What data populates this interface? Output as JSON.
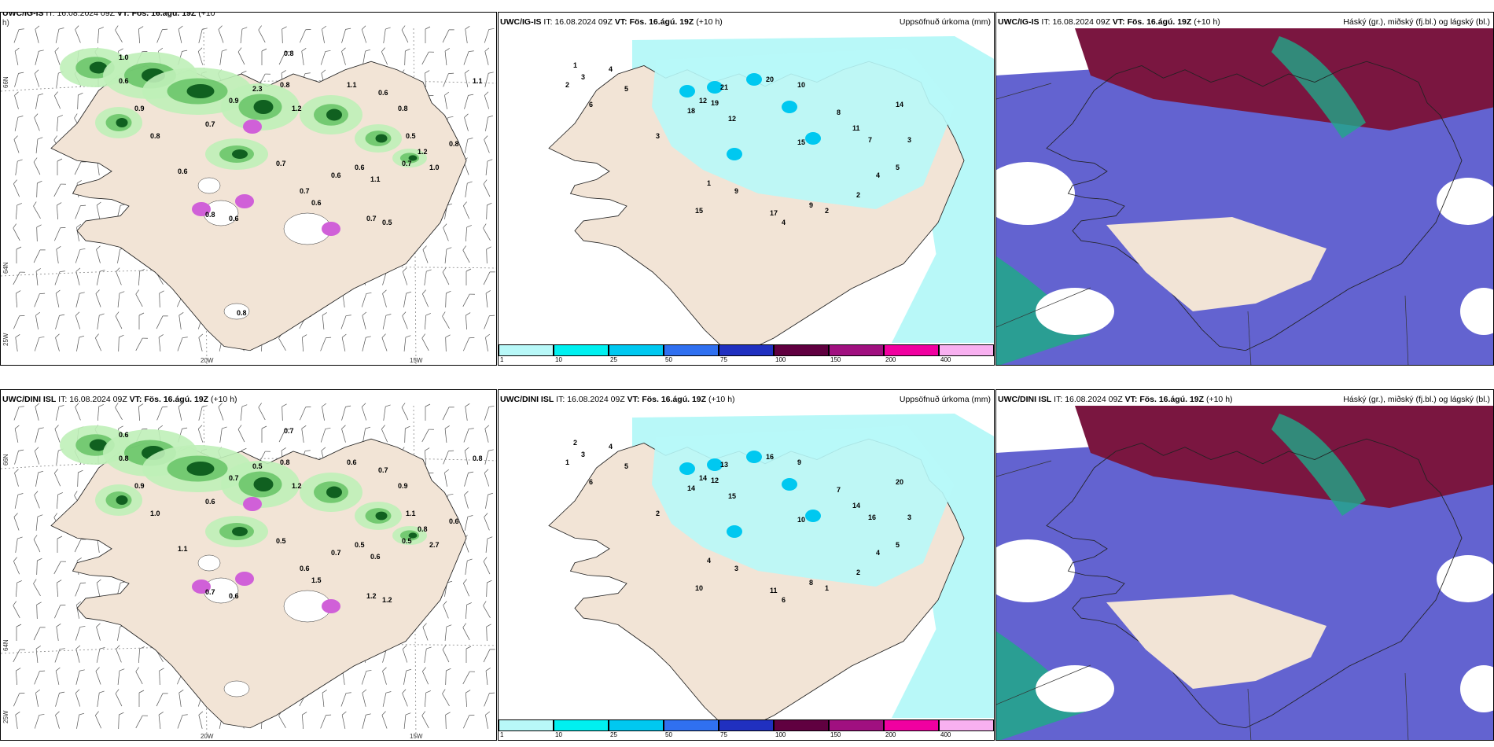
{
  "panels": [
    {
      "id": "top-wind",
      "model": "UWC/IG-IS",
      "it_label": "IT:",
      "it": "16.08.2024 09Z",
      "vt_label": "VT:",
      "vt": "Fös. 16.ágú. 19Z",
      "lead": "(+10",
      "lead_wrap": "h)",
      "lat_labels": [
        "66N",
        "64N",
        "25W"
      ],
      "lon_labels": [
        "20W",
        "15W"
      ],
      "numbers": [
        "1.0",
        "0.8",
        "0.6",
        "0.9",
        "0.8",
        "0.6",
        "0.7",
        "0.9",
        "2.3",
        "0.8",
        "1.2",
        "1.1",
        "0.6",
        "0.8",
        "0.5",
        "1.2",
        "1.0",
        "0.7",
        "1.1",
        "0.6",
        "0.7",
        "0.6",
        "0.7",
        "0.6",
        "0.8",
        "0.7",
        "0.5",
        "0.6",
        "1.1",
        "0.8",
        "0.8"
      ]
    },
    {
      "id": "top-precip",
      "model": "UWC/IG-IS",
      "it_label": "IT:",
      "it": "16.08.2024 09Z",
      "vt_label": "VT:",
      "vt": "Fös. 16.ágú. 19Z",
      "lead": "(+10 h)",
      "right_title": "Uppsöfnuð úrkoma (mm)",
      "numbers": [
        "1",
        "2",
        "3",
        "4",
        "5",
        "6",
        "21",
        "18",
        "19",
        "12",
        "20",
        "10",
        "15",
        "17",
        "9",
        "8",
        "11",
        "7",
        "14",
        "3",
        "5",
        "4",
        "2",
        "2",
        "4",
        "9",
        "1",
        "15",
        "12",
        "3"
      ],
      "colorbar": [
        "1",
        "10",
        "25",
        "50",
        "75",
        "100",
        "150",
        "200",
        "400"
      ]
    },
    {
      "id": "top-cloud",
      "model": "UWC/IG-IS",
      "it_label": "IT:",
      "it": "16.08.2024 09Z",
      "vt_label": "VT:",
      "vt": "Fös. 16.ágú. 19Z",
      "lead": "(+10 h)",
      "right_title": "Háský (gr.), miðský (fj.bl.) og lágský (bl.)"
    },
    {
      "id": "bottom-wind",
      "model": "UWC/DINI ISL",
      "it_label": "IT:",
      "it": "16.08.2024 09Z",
      "vt_label": "VT:",
      "vt": "Fös. 16.ágú. 19Z",
      "lead": "(+10 h)",
      "lat_labels": [
        "66N",
        "64N",
        "25W"
      ],
      "lon_labels": [
        "20W",
        "15W"
      ],
      "numbers": [
        "0.6",
        "0.7",
        "0.8",
        "0.9",
        "1.0",
        "1.1",
        "0.6",
        "0.7",
        "0.5",
        "0.8",
        "1.2",
        "0.6",
        "0.7",
        "0.9",
        "1.1",
        "0.8",
        "2.7",
        "0.5",
        "0.6",
        "0.7",
        "0.6",
        "1.5",
        "0.5",
        "0.6",
        "0.7",
        "1.2",
        "1.2",
        "0.5",
        "0.8",
        "0.6"
      ]
    },
    {
      "id": "bottom-precip",
      "model": "UWC/DINI ISL",
      "it_label": "IT:",
      "it": "16.08.2024 09Z",
      "vt_label": "VT:",
      "vt": "Fös. 16.ágú. 19Z",
      "lead": "(+10 h)",
      "right_title": "Uppsöfnuð úrkoma (mm)",
      "numbers": [
        "2",
        "1",
        "3",
        "4",
        "5",
        "6",
        "13",
        "14",
        "12",
        "15",
        "16",
        "9",
        "10",
        "11",
        "8",
        "7",
        "14",
        "16",
        "20",
        "3",
        "5",
        "4",
        "2",
        "1",
        "6",
        "3",
        "4",
        "10",
        "14",
        "2"
      ],
      "colorbar": [
        "1",
        "10",
        "25",
        "50",
        "75",
        "100",
        "150",
        "200",
        "400"
      ]
    },
    {
      "id": "bottom-cloud",
      "model": "UWC/DINI ISL",
      "it_label": "IT:",
      "it": "16.08.2024 09Z",
      "vt_label": "VT:",
      "vt": "Fös. 16.ágú. 19Z",
      "lead": "(+10 h)",
      "right_title": "Háský (gr.), miðský (fj.bl.) og lágský (bl.)"
    }
  ],
  "colors": {
    "land": "#f2e4d6",
    "precip_bar": [
      "#b8f8f8",
      "#00f0f0",
      "#00c8f0",
      "#3070f0",
      "#2030c0",
      "#600040",
      "#a01080",
      "#f000a0",
      "#f8b0f0"
    ],
    "green_light": "#bff0b8",
    "green_mid": "#60c060",
    "green_dark": "#106020",
    "magenta": "#d060d8",
    "cyan_precip": "#b8f8f8",
    "cloud_high": "#7a1640",
    "cloud_mid": "#4848c8",
    "cloud_low": "#20a888"
  }
}
